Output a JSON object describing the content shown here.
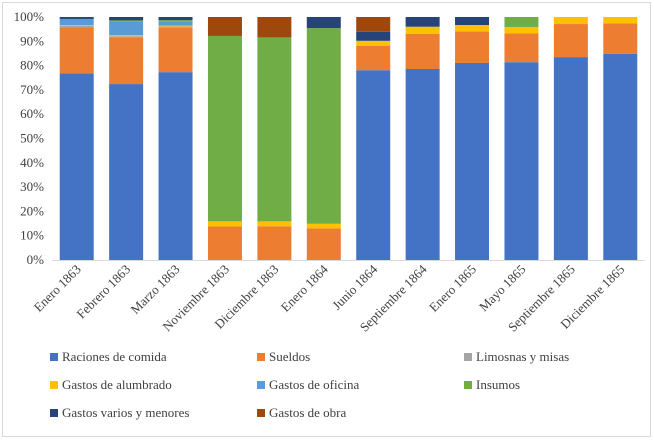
{
  "chart_data": {
    "type": "bar",
    "stacked": "percent",
    "title": "",
    "xlabel": "",
    "ylabel": "",
    "ylim": [
      0,
      100
    ],
    "y_ticks": [
      "0%",
      "10%",
      "20%",
      "30%",
      "40%",
      "50%",
      "60%",
      "70%",
      "80%",
      "90%",
      "100%"
    ],
    "categories": [
      "Enero 1863",
      "Febrero 1863",
      "Marzo 1863",
      "Noviembre 1863",
      "Diciembre 1863",
      "Enero 1864",
      "Junio 1864",
      "Septiembre 1864",
      "Enero 1865",
      "Mayo 1865",
      "Septiembre 1865",
      "Diciembre 1865"
    ],
    "series": [
      {
        "name": "Raciones de comida",
        "color": "#4472c4",
        "values": [
          76.8,
          72.4,
          77.3,
          0,
          0,
          0,
          78.1,
          78.6,
          81.1,
          81.4,
          83.5,
          84.8
        ]
      },
      {
        "name": "Sueldos",
        "color": "#ed7d31",
        "values": [
          18.9,
          19.3,
          18.3,
          13.8,
          13.9,
          13.0,
          10.1,
          14.5,
          13.0,
          11.8,
          13.6,
          12.6
        ]
      },
      {
        "name": "Limosnas y misas",
        "color": "#a5a5a5",
        "values": [
          0.6,
          0.4,
          0.5,
          0,
          0,
          0,
          0,
          0,
          0,
          0,
          0,
          0
        ]
      },
      {
        "name": "Gastos de alumbrado",
        "color": "#ffc000",
        "values": [
          0.4,
          0.4,
          0.4,
          2.1,
          2.0,
          1.9,
          2.0,
          2.9,
          2.6,
          2.7,
          2.9,
          2.6
        ]
      },
      {
        "name": "Gastos de oficina",
        "color": "#5b9bd5",
        "values": [
          2.5,
          5.7,
          1.8,
          0,
          0,
          0,
          0,
          0,
          0,
          0,
          0,
          0
        ]
      },
      {
        "name": "Insumos",
        "color": "#70ad47",
        "values": [
          0,
          0.4,
          0.4,
          76.3,
          75.7,
          80.5,
          0,
          0,
          0,
          4.1,
          0,
          0
        ]
      },
      {
        "name": "Gastos varios y menores",
        "color": "#264478",
        "values": [
          0.8,
          1.4,
          1.3,
          0,
          0,
          4.6,
          3.7,
          4.0,
          3.3,
          0,
          0,
          0
        ]
      },
      {
        "name": "Gastos de obra",
        "color": "#9e480e",
        "values": [
          0,
          0,
          0,
          7.8,
          8.4,
          0,
          6.1,
          0,
          0,
          0,
          0,
          0
        ]
      }
    ],
    "legend_position": "bottom",
    "grid": false
  }
}
